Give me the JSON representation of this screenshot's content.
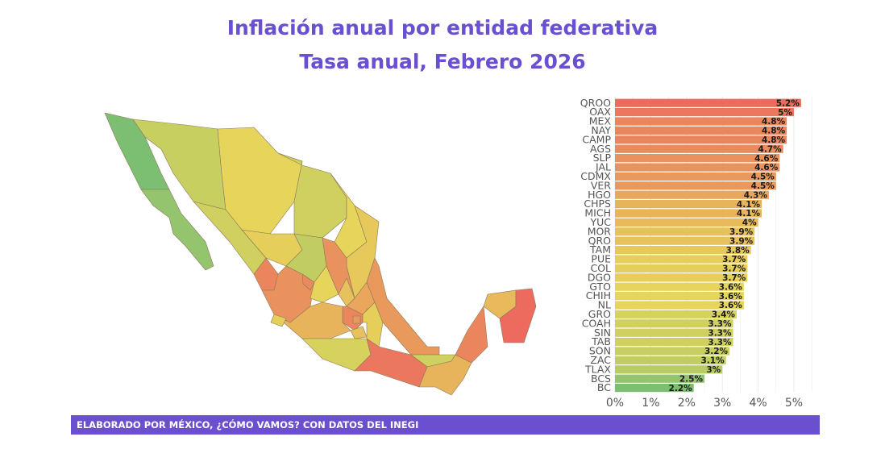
{
  "title": "Inflación anual por entidad federativa",
  "subtitle": "Tasa anual, Febrero 2026",
  "footer": "ELABORADO POR MÉXICO, ¿CÓMO VAMOS? CON DATOS DEL INEGI",
  "colors": {
    "low": "#7dbf72",
    "mid": "#e6d55a",
    "high": "#ec6a5e",
    "title": "#6a4fd1",
    "footer": "#6a4fcf"
  },
  "chart_data": [
    {
      "type": "map",
      "region": "Mexico",
      "note_values_from": "bar chart"
    },
    {
      "type": "bar",
      "orientation": "horizontal",
      "categories": [
        "QROO",
        "OAX",
        "MEX",
        "NAY",
        "CAMP",
        "AGS",
        "SLP",
        "JAL",
        "CDMX",
        "VER",
        "HGO",
        "CHPS",
        "MICH",
        "YUC",
        "MOR",
        "QRO",
        "TAM",
        "PUE",
        "COL",
        "DGO",
        "GTO",
        "CHIH",
        "NL",
        "GRO",
        "COAH",
        "SIN",
        "TAB",
        "SON",
        "ZAC",
        "TLAX",
        "BCS",
        "BC"
      ],
      "values": [
        5.2,
        5,
        4.8,
        4.8,
        4.8,
        4.7,
        4.6,
        4.6,
        4.5,
        4.5,
        4.3,
        4.1,
        4.1,
        4,
        3.9,
        3.9,
        3.8,
        3.7,
        3.7,
        3.7,
        3.6,
        3.6,
        3.6,
        3.4,
        3.3,
        3.3,
        3.3,
        3.2,
        3.1,
        3,
        2.5,
        2.2
      ],
      "data_labels": [
        "5.2%",
        "5%",
        "4.8%",
        "4.8%",
        "4.8%",
        "4.7%",
        "4.6%",
        "4.6%",
        "4.5%",
        "4.5%",
        "4.3%",
        "4.1%",
        "4.1%",
        "4%",
        "3.9%",
        "3.9%",
        "3.8%",
        "3.7%",
        "3.7%",
        "3.7%",
        "3.6%",
        "3.6%",
        "3.6%",
        "3.4%",
        "3.3%",
        "3.3%",
        "3.3%",
        "3.2%",
        "3.1%",
        "3%",
        "2.5%",
        "2.2%"
      ],
      "xticks": [
        "0%",
        "1%",
        "2%",
        "3%",
        "4%",
        "5%"
      ],
      "xlim": [
        0,
        5.5
      ],
      "grid": true
    }
  ]
}
